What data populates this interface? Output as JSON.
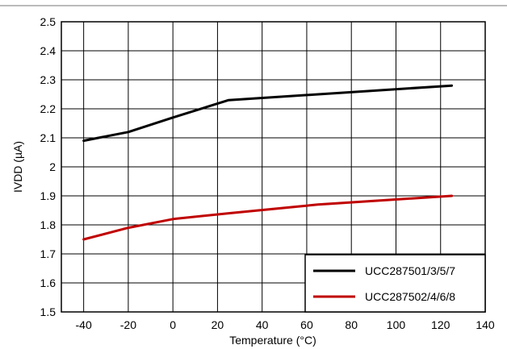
{
  "chart_data": {
    "type": "line",
    "xlabel": "Temperature (°C)",
    "ylabel": "IVDD (µA)",
    "xlim": [
      -50,
      140
    ],
    "ylim": [
      1.5,
      2.5
    ],
    "xticks": [
      -40,
      -20,
      0,
      20,
      40,
      60,
      80,
      100,
      120,
      140
    ],
    "yticks": [
      1.5,
      1.6,
      1.7,
      1.8,
      1.9,
      2,
      2.1,
      2.2,
      2.3,
      2.4,
      2.5
    ],
    "xtick_labels": [
      "-40",
      "-20",
      "0",
      "20",
      "40",
      "60",
      "80",
      "100",
      "120",
      "140"
    ],
    "ytick_labels": [
      "1.5",
      "1.6",
      "1.7",
      "1.8",
      "1.9",
      "2",
      "2.1",
      "2.2",
      "2.3",
      "2.4",
      "2.5"
    ],
    "grid": true,
    "legend_position": "bottom-right",
    "series": [
      {
        "name": "UCC287501/3/5/7",
        "color": "#000000",
        "x": [
          -40,
          -20,
          0,
          25,
          125
        ],
        "y": [
          2.09,
          2.12,
          2.17,
          2.23,
          2.28
        ]
      },
      {
        "name": "UCC287502/4/6/8",
        "color": "#c00000",
        "x": [
          -40,
          -20,
          0,
          25,
          65,
          125
        ],
        "y": [
          1.75,
          1.79,
          1.82,
          1.84,
          1.87,
          1.9
        ]
      }
    ]
  }
}
